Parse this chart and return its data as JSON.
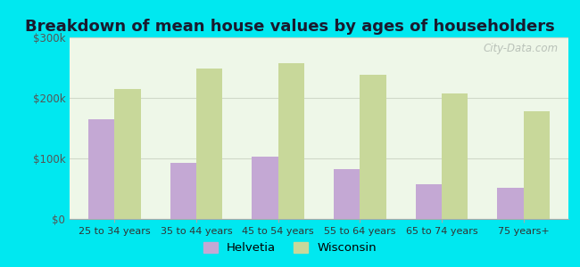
{
  "title": "Breakdown of mean house values by ages of householders",
  "categories": [
    "25 to 34 years",
    "35 to 44 years",
    "45 to 54 years",
    "55 to 64 years",
    "65 to 74 years",
    "75 years+"
  ],
  "helvetia_values": [
    165000,
    93000,
    103000,
    82000,
    58000,
    52000
  ],
  "wisconsin_values": [
    215000,
    248000,
    258000,
    238000,
    208000,
    178000
  ],
  "helvetia_color": "#c4a8d4",
  "wisconsin_color": "#c8d89a",
  "background_outer": "#00e8f0",
  "background_inner": "#eef7e8",
  "ylim": [
    0,
    300000
  ],
  "yticks": [
    0,
    100000,
    200000,
    300000
  ],
  "ytick_labels": [
    "$0",
    "$100k",
    "$200k",
    "$300k"
  ],
  "title_fontsize": 13,
  "legend_labels": [
    "Helvetia",
    "Wisconsin"
  ],
  "bar_width": 0.32,
  "grid_color": "#d0d8c8",
  "watermark": "City-Data.com"
}
